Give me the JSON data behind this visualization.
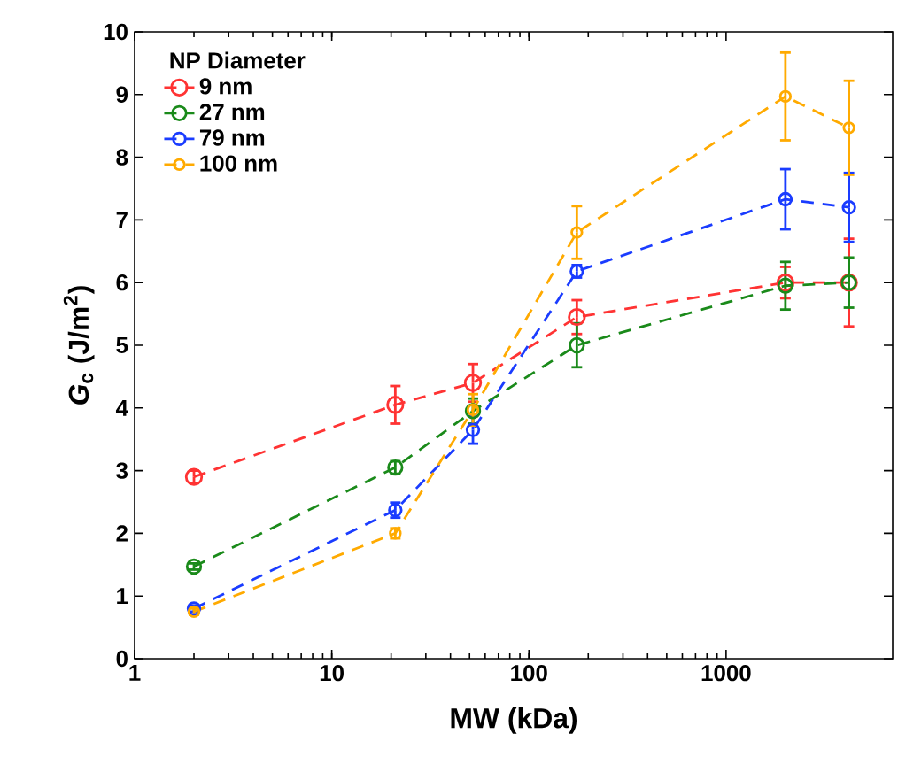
{
  "chart_data": {
    "type": "line",
    "xlabel": "MW (kDa)",
    "ylabel": "*G*$_{c}$ (J/m$^{2}$)",
    "legend_title": "NP Diameter",
    "x": [
      2,
      21,
      52,
      175,
      2000,
      4200
    ],
    "series": [
      {
        "name": "9 nm",
        "color": "#ff3333",
        "values": [
          2.9,
          4.05,
          4.4,
          5.45,
          6.0,
          6.0
        ],
        "errors": [
          0.1,
          0.3,
          0.3,
          0.27,
          0.25,
          0.7
        ]
      },
      {
        "name": "27 nm",
        "color": "#1a8a1a",
        "values": [
          1.47,
          3.05,
          3.95,
          5.0,
          5.95,
          6.0
        ],
        "errors": [
          0.05,
          0.1,
          0.2,
          0.35,
          0.38,
          0.4
        ]
      },
      {
        "name": "79 nm",
        "color": "#1a3cff",
        "values": [
          0.8,
          2.37,
          3.65,
          6.18,
          7.33,
          7.2
        ],
        "errors": [
          0.05,
          0.12,
          0.22,
          0.1,
          0.48,
          0.55
        ]
      },
      {
        "name": "100 nm",
        "color": "#ffaa00",
        "values": [
          0.75,
          2.0,
          3.97,
          6.8,
          8.97,
          8.47
        ],
        "errors": [
          0.05,
          0.08,
          0.25,
          0.42,
          0.7,
          0.75
        ]
      }
    ],
    "xlim": [
      1,
      7000
    ],
    "xticks": [
      1,
      10,
      100,
      1000
    ],
    "ylim": [
      0,
      10
    ],
    "yticks": [
      0,
      1,
      2,
      3,
      4,
      5,
      6,
      7,
      8,
      9,
      10
    ],
    "log": "x",
    "grid": false,
    "legend": "top left",
    "marker": "circle",
    "line_style": "dashed"
  }
}
